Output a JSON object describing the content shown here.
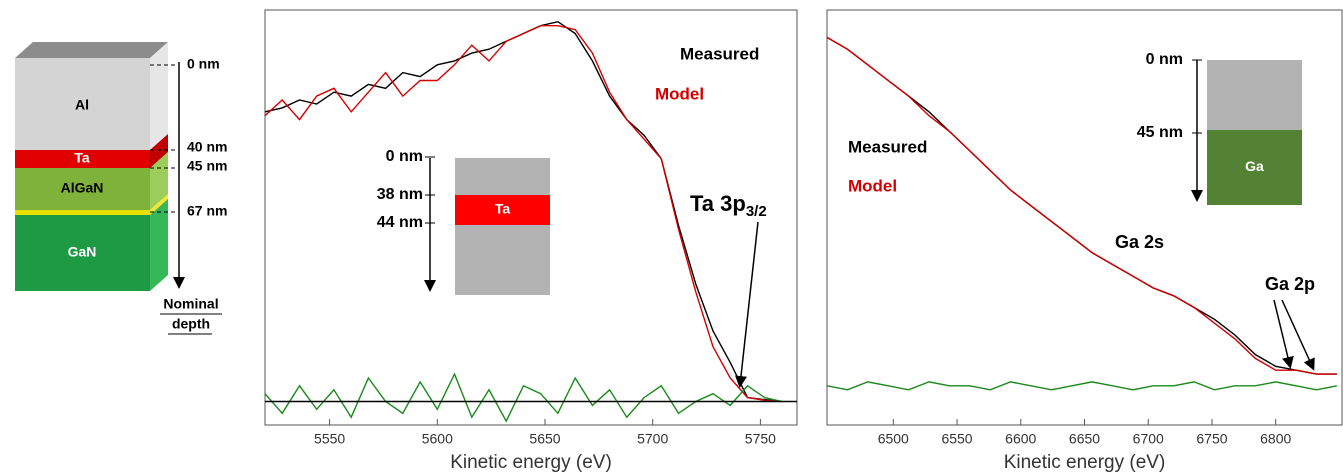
{
  "chart_data": [
    {
      "type": "line",
      "xlabel": "Kinetic energy (eV)",
      "xlim": [
        5520,
        5767
      ],
      "xticks": [
        5550,
        5600,
        5650,
        5700,
        5750
      ],
      "ylim": [
        -6,
        100
      ],
      "series": [
        {
          "name": "Measured",
          "color": "#000000",
          "x": [
            5520,
            5528,
            5536,
            5544,
            5552,
            5560,
            5568,
            5576,
            5584,
            5592,
            5600,
            5608,
            5616,
            5624,
            5632,
            5640,
            5648,
            5656,
            5664,
            5672,
            5680,
            5688,
            5696,
            5704,
            5712,
            5720,
            5728,
            5736,
            5744,
            5752,
            5760
          ],
          "values": [
            74,
            75,
            77,
            76,
            79,
            78,
            81,
            80,
            84,
            83,
            86,
            87,
            89,
            90,
            92,
            94,
            96,
            97,
            94,
            87,
            78,
            72,
            68,
            62,
            45,
            30,
            18,
            10,
            1,
            0.5,
            0
          ]
        },
        {
          "name": "Model",
          "color": "#d40000",
          "x": [
            5520,
            5528,
            5536,
            5544,
            5552,
            5560,
            5568,
            5576,
            5584,
            5592,
            5600,
            5608,
            5616,
            5624,
            5632,
            5640,
            5648,
            5656,
            5664,
            5672,
            5680,
            5688,
            5696,
            5704,
            5712,
            5720,
            5728,
            5736,
            5744,
            5752,
            5760
          ],
          "values": [
            73,
            77,
            72,
            78,
            80,
            74,
            79,
            84,
            78,
            82,
            82,
            86,
            91,
            87,
            92,
            94,
            96,
            96,
            95,
            89,
            79,
            72,
            67,
            62,
            44,
            28,
            14,
            6,
            1,
            0.3,
            0
          ]
        },
        {
          "color": "#1a8a1a",
          "x": [
            5520,
            5528,
            5536,
            5544,
            5552,
            5560,
            5568,
            5576,
            5584,
            5592,
            5600,
            5608,
            5616,
            5624,
            5632,
            5640,
            5648,
            5656,
            5664,
            5672,
            5680,
            5688,
            5696,
            5704,
            5712,
            5720,
            5728,
            5736,
            5744,
            5752,
            5760
          ],
          "values": [
            2,
            -3,
            4,
            -2,
            3,
            -4,
            6,
            0,
            -3,
            5,
            -2,
            7,
            -4,
            3,
            -5,
            4,
            2,
            -3,
            6,
            -1,
            3,
            -4,
            1,
            4,
            -3,
            0,
            2,
            -1,
            4,
            1,
            0
          ]
        },
        {
          "color": "#000000",
          "x": [
            5520,
            5767
          ],
          "values": [
            0,
            0
          ]
        }
      ],
      "annotations": [
        {
          "text": "Ta 3p",
          "sub": "3/2"
        }
      ],
      "inset": {
        "depths": [
          "0 nm",
          "38 nm",
          "44 nm"
        ],
        "layer": "Ta"
      }
    },
    {
      "type": "line",
      "xlabel": "Kinetic energy (eV)",
      "xlim": [
        6448,
        6852
      ],
      "xticks": [
        6500,
        6550,
        6600,
        6650,
        6700,
        6750,
        6800
      ],
      "ylim": [
        -6,
        100
      ],
      "series": [
        {
          "name": "Measured",
          "color": "#000000",
          "x": [
            6448,
            6464,
            6480,
            6496,
            6512,
            6528,
            6544,
            6560,
            6576,
            6592,
            6608,
            6624,
            6640,
            6656,
            6672,
            6688,
            6704,
            6720,
            6736,
            6752,
            6768,
            6784,
            6800,
            6816,
            6832,
            6848
          ],
          "values": [
            93,
            90,
            86,
            82,
            78,
            74,
            69,
            64,
            59,
            54,
            50,
            46,
            42,
            38,
            35,
            32,
            29,
            27,
            24,
            21,
            17,
            12,
            9,
            8,
            7,
            7
          ]
        },
        {
          "name": "Model",
          "color": "#d40000",
          "x": [
            6448,
            6464,
            6480,
            6496,
            6512,
            6528,
            6544,
            6560,
            6576,
            6592,
            6608,
            6624,
            6640,
            6656,
            6672,
            6688,
            6704,
            6720,
            6736,
            6752,
            6768,
            6784,
            6800,
            6816,
            6832,
            6848
          ],
          "values": [
            93,
            90,
            86,
            82,
            78,
            73,
            69,
            64,
            59,
            54,
            50,
            46,
            42,
            38,
            35,
            32,
            29,
            27,
            24,
            20,
            16,
            11,
            8,
            8,
            7,
            7
          ]
        },
        {
          "color": "#1a8a1a",
          "x": [
            6448,
            6464,
            6480,
            6496,
            6512,
            6528,
            6544,
            6560,
            6576,
            6592,
            6608,
            6624,
            6640,
            6656,
            6672,
            6688,
            6704,
            6720,
            6736,
            6752,
            6768,
            6784,
            6800,
            6816,
            6832,
            6848
          ],
          "values": [
            4,
            3,
            5,
            4,
            3,
            5,
            4,
            4,
            3,
            5,
            4,
            3,
            4,
            5,
            4,
            3,
            4,
            4,
            5,
            3,
            4,
            4,
            5,
            4,
            3,
            4
          ]
        }
      ],
      "annotations": [
        {
          "text": "Ga 2s"
        },
        {
          "text": "Ga 2p"
        }
      ],
      "inset": {
        "depths": [
          "0 nm",
          "45 nm"
        ],
        "layer": "Ga"
      }
    }
  ],
  "diagram": {
    "layers": [
      "Al",
      "Ta",
      "AlGaN",
      "GaN"
    ],
    "depths": [
      "0 nm",
      "40 nm",
      "45 nm",
      "67 nm"
    ],
    "axis_label": [
      "Nominal",
      "depth"
    ]
  }
}
